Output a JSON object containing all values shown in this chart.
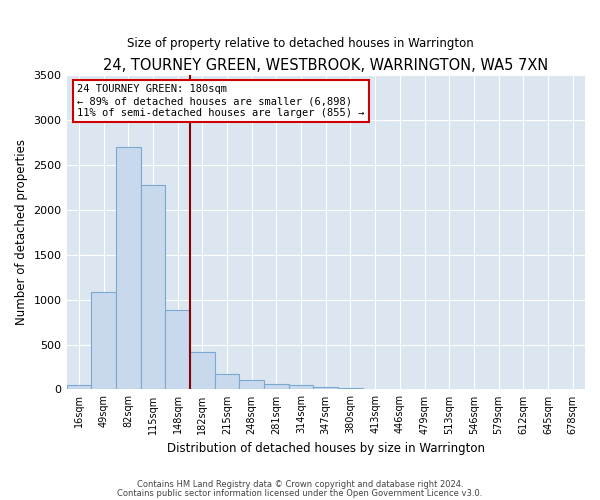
{
  "title": "24, TOURNEY GREEN, WESTBROOK, WARRINGTON, WA5 7XN",
  "subtitle": "Size of property relative to detached houses in Warrington",
  "xlabel": "Distribution of detached houses by size in Warrington",
  "ylabel": "Number of detached properties",
  "categories": [
    "16sqm",
    "49sqm",
    "82sqm",
    "115sqm",
    "148sqm",
    "182sqm",
    "215sqm",
    "248sqm",
    "281sqm",
    "314sqm",
    "347sqm",
    "380sqm",
    "413sqm",
    "446sqm",
    "479sqm",
    "513sqm",
    "546sqm",
    "579sqm",
    "612sqm",
    "645sqm",
    "678sqm"
  ],
  "values": [
    50,
    1080,
    2700,
    2280,
    880,
    420,
    175,
    100,
    60,
    50,
    25,
    12,
    7,
    4,
    2,
    1,
    1,
    0,
    0,
    0,
    0
  ],
  "bar_color": "#c9d9ed",
  "bar_edge_color": "#7ba8ce",
  "vline_x": 4.5,
  "annotation_text1": "24 TOURNEY GREEN: 180sqm",
  "annotation_text2": "← 89% of detached houses are smaller (6,898)",
  "annotation_text3": "11% of semi-detached houses are larger (855) →",
  "annotation_box_color": "#ffffff",
  "annotation_border_color": "#cc0000",
  "vline_color": "#8b0000",
  "ylim": [
    0,
    3500
  ],
  "yticks": [
    0,
    500,
    1000,
    1500,
    2000,
    2500,
    3000,
    3500
  ],
  "bg_color": "#dce6f0",
  "fig_bg_color": "#ffffff",
  "footer1": "Contains HM Land Registry data © Crown copyright and database right 2024.",
  "footer2": "Contains public sector information licensed under the Open Government Licence v3.0."
}
